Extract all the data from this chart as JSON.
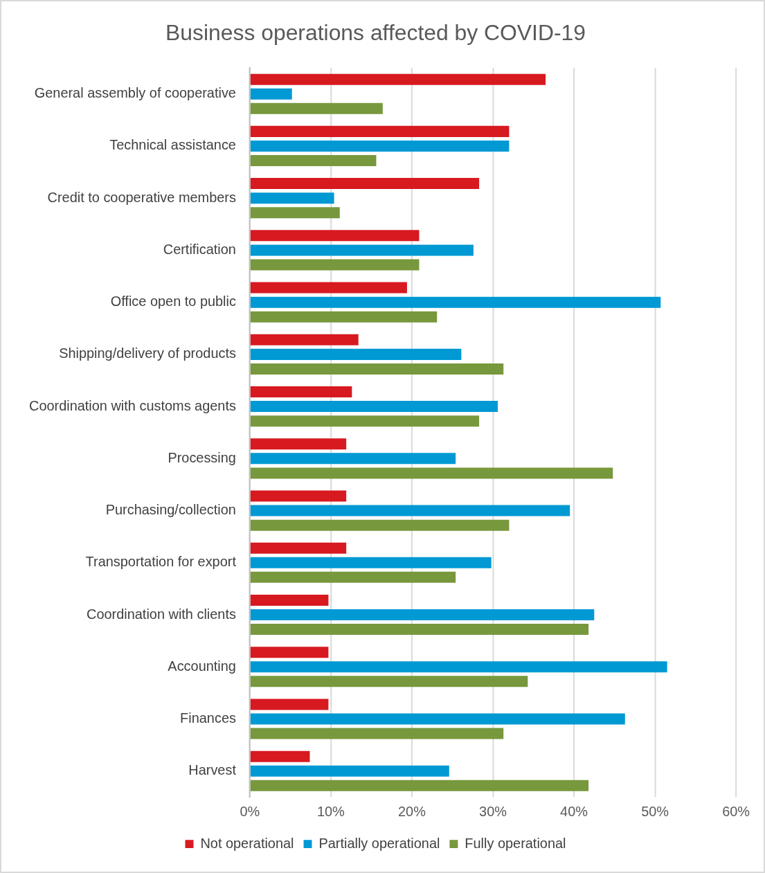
{
  "chart_data": {
    "type": "bar",
    "orientation": "horizontal",
    "title": "Business operations affected by COVID-19",
    "categories": [
      "General assembly of cooperative",
      "Technical assistance",
      "Credit to cooperative members",
      "Certification",
      "Office open to public",
      "Shipping/delivery of products",
      "Coordination with customs agents",
      "Processing",
      "Purchasing/collection",
      "Transportation for export",
      "Coordination with clients",
      "Accounting",
      "Finances",
      "Harvest"
    ],
    "series": [
      {
        "name": "Not operational",
        "color": "#d71920",
        "values": [
          36.5,
          32.0,
          28.3,
          20.9,
          19.4,
          13.4,
          12.6,
          11.9,
          11.9,
          11.9,
          9.7,
          9.7,
          9.7,
          7.4
        ]
      },
      {
        "name": "Partially operational",
        "color": "#0099d4",
        "values": [
          5.2,
          32.0,
          10.4,
          27.6,
          50.7,
          26.1,
          30.6,
          25.4,
          39.5,
          29.8,
          42.5,
          51.5,
          46.3,
          24.6
        ]
      },
      {
        "name": "Fully operational",
        "color": "#77983c",
        "values": [
          16.4,
          15.6,
          11.1,
          20.9,
          23.1,
          31.3,
          28.3,
          44.8,
          32.0,
          25.4,
          41.8,
          34.3,
          31.3,
          41.8
        ]
      }
    ],
    "xlim": [
      0,
      60
    ],
    "xticks": [
      {
        "value": 0,
        "label": "0%"
      },
      {
        "value": 10,
        "label": "10%"
      },
      {
        "value": 20,
        "label": "20%"
      },
      {
        "value": 30,
        "label": "30%"
      },
      {
        "value": 40,
        "label": "40%"
      },
      {
        "value": 50,
        "label": "50%"
      },
      {
        "value": 60,
        "label": "60%"
      }
    ],
    "grid": "x",
    "legend": "bottom"
  }
}
